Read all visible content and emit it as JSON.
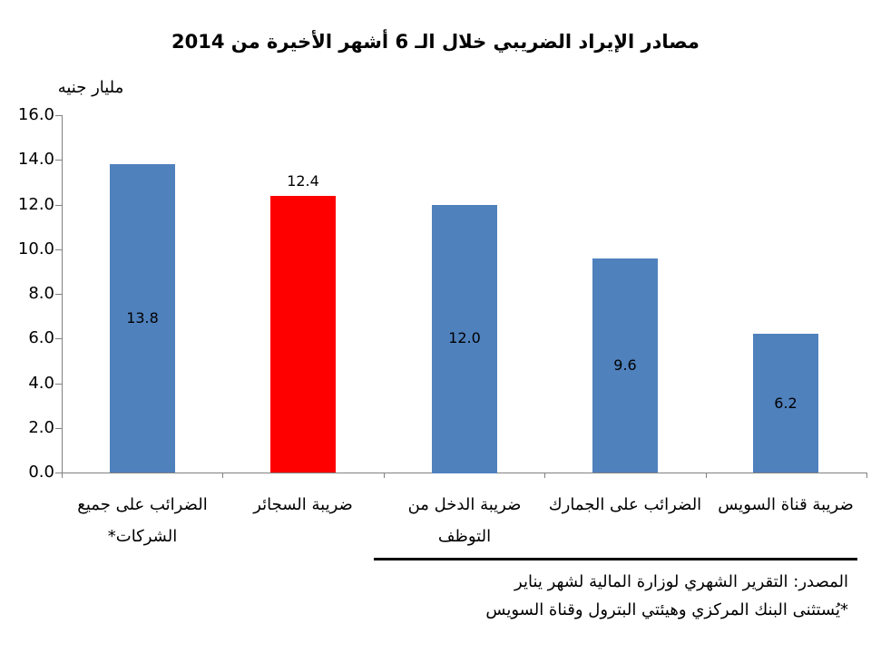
{
  "chart_data": {
    "type": "bar",
    "title": "مصادر الإيراد الضريبي خلال الـ 6 أشهر الأخيرة من 2014",
    "unit_label": "مليار جنيه",
    "ylabel": "مليار جنيه",
    "xlabel": "",
    "categories": [
      "الضرائب على جميع الشركات*",
      "ضريبة السجائر",
      "ضريبة الدخل من التوظف",
      "الضرائب على الجمارك",
      "ضريبة قناة السويس"
    ],
    "category_lines": [
      [
        "الضرائب على جميع",
        "الشركات*"
      ],
      [
        "ضريبة السجائر"
      ],
      [
        "ضريبة الدخل من",
        "التوظف"
      ],
      [
        "الضرائب على الجمارك"
      ],
      [
        "ضريبة قناة السويس"
      ]
    ],
    "values": [
      13.8,
      12.4,
      12.0,
      9.6,
      6.2
    ],
    "value_labels": [
      "13.8",
      "12.4",
      "12.0",
      "9.6",
      "6.2"
    ],
    "bar_colors": [
      "#4F81BD",
      "#FF0000",
      "#4F81BD",
      "#4F81BD",
      "#4F81BD"
    ],
    "value_label_placement": [
      "center",
      "above",
      "center",
      "center",
      "center"
    ],
    "ylim": [
      0,
      16
    ],
    "ytick_step": 2,
    "yticks": [
      "16.0",
      "14.0",
      "12.0",
      "10.0",
      "8.0",
      "6.0",
      "4.0",
      "2.0",
      "0.0"
    ],
    "grid": false,
    "legend": false
  },
  "footer": {
    "source_line": "المصدر: التقرير الشهري لوزارة المالية لشهر يناير",
    "note_line": "*يُستثنى البنك المركزي وهيئتي البترول وقناة السويس"
  },
  "colors": {
    "bar_blue": "#4F81BD",
    "bar_red": "#FF0000",
    "axis_gray": "#808080",
    "text_black": "#000000",
    "background": "#FFFFFF"
  }
}
